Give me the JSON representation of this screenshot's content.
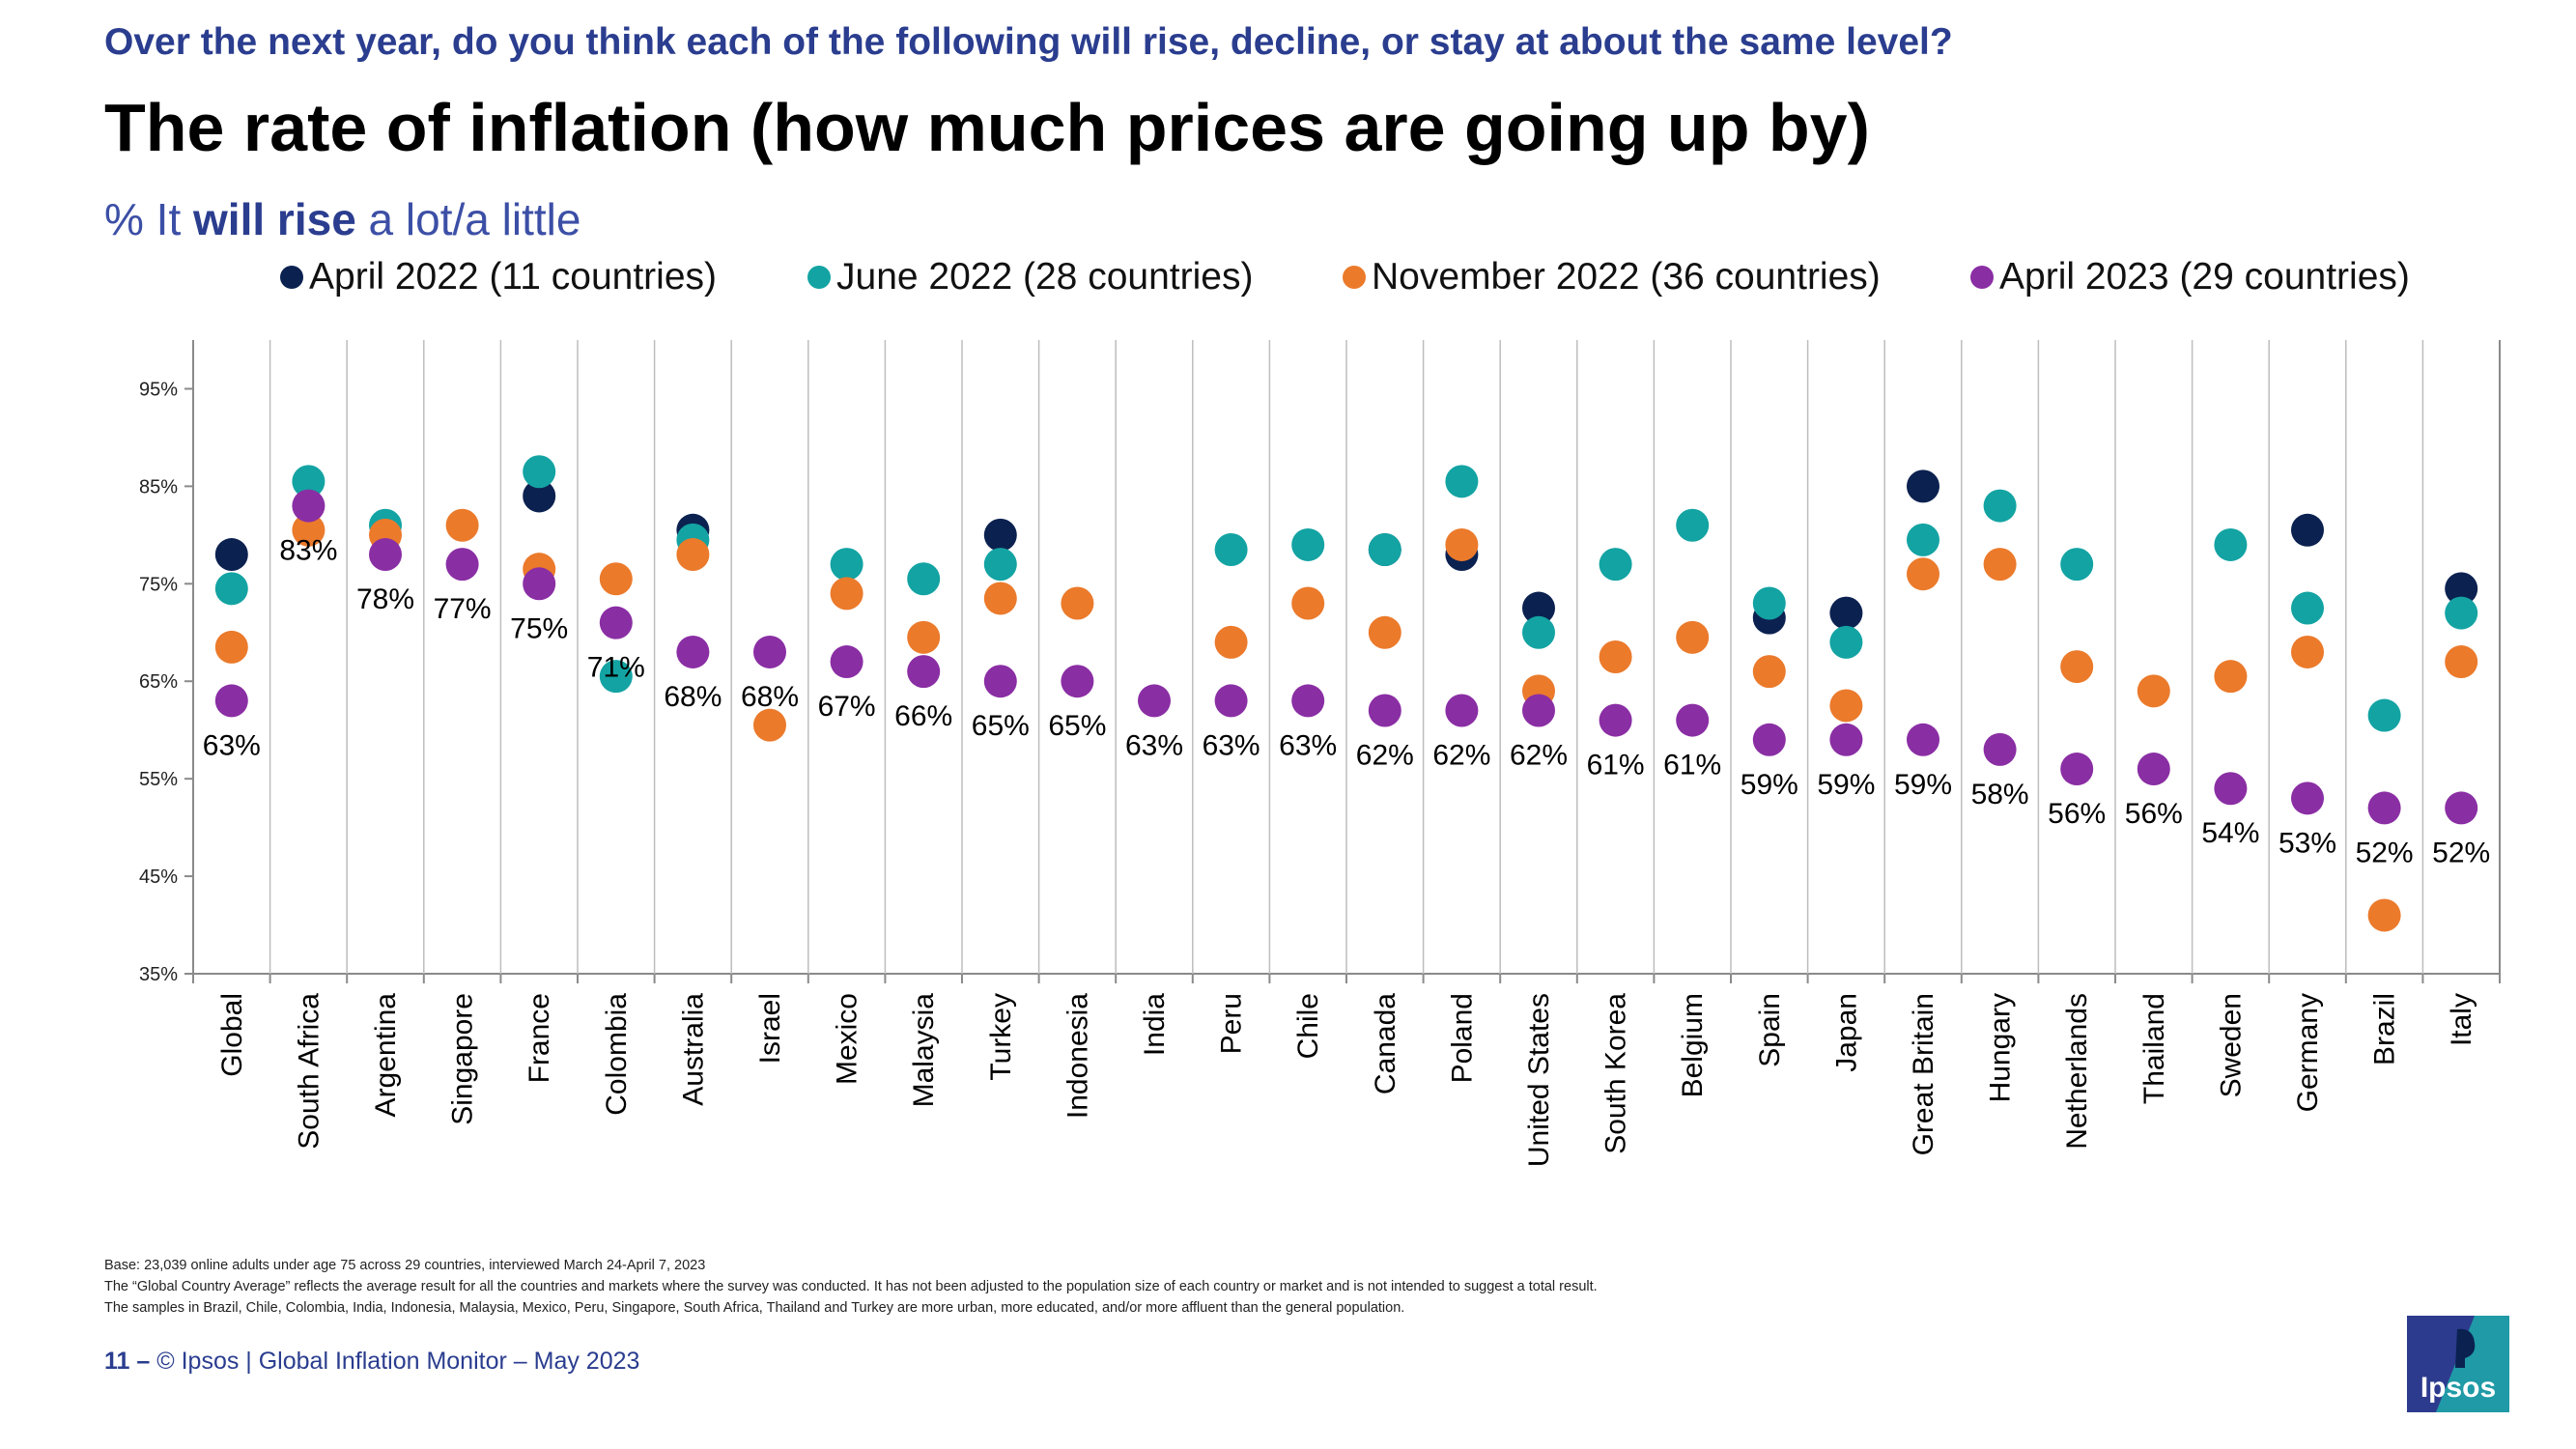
{
  "header": {
    "question": "Over the next year, do you think each of the following will rise, decline, or stay at about the same level?",
    "title": "The rate of inflation (how much prices are going up by)",
    "subtitle_prefix": "% It ",
    "subtitle_bold": "will rise",
    "subtitle_suffix": " a lot/a little"
  },
  "colors": {
    "april2022": "#0b2150",
    "june2022": "#13a3a3",
    "november2022": "#eb7a2b",
    "april2023": "#8a2ea4",
    "question_text": "#2a3d8f"
  },
  "legend": [
    {
      "label": "April 2022 (11 countries)",
      "color": "#0b2150"
    },
    {
      "label": "June 2022 (28 countries)",
      "color": "#13a3a3"
    },
    {
      "label": "November 2022 (36 countries)",
      "color": "#eb7a2b"
    },
    {
      "label": "April 2023 (29 countries)",
      "color": "#8a2ea4"
    }
  ],
  "chart_data": {
    "type": "scatter",
    "title": "The rate of inflation (how much prices are going up by)",
    "ylabel": "% It will rise a lot/a little",
    "ylim": [
      35,
      100
    ],
    "yticks": [
      35,
      45,
      55,
      65,
      75,
      85,
      95
    ],
    "ytick_labels": [
      "35%",
      "45%",
      "55%",
      "65%",
      "75%",
      "85%",
      "95%"
    ],
    "categories": [
      "Global",
      "South Africa",
      "Argentina",
      "Singapore",
      "France",
      "Colombia",
      "Australia",
      "Israel",
      "Mexico",
      "Malaysia",
      "Turkey",
      "Indonesia",
      "India",
      "Peru",
      "Chile",
      "Canada",
      "Poland",
      "United States",
      "South Korea",
      "Belgium",
      "Spain",
      "Japan",
      "Great Britain",
      "Hungary",
      "Netherlands",
      "Thailand",
      "Sweden",
      "Germany",
      "Brazil",
      "Italy"
    ],
    "series": [
      {
        "name": "April 2022 (11 countries)",
        "color": "#0b2150",
        "values": [
          78,
          null,
          null,
          null,
          84,
          null,
          80.5,
          null,
          null,
          null,
          80,
          null,
          null,
          null,
          null,
          78.5,
          78,
          72.5,
          null,
          null,
          71.5,
          72,
          85,
          null,
          null,
          null,
          null,
          80.5,
          null,
          74.5
        ]
      },
      {
        "name": "June 2022 (28 countries)",
        "color": "#13a3a3",
        "values": [
          74.5,
          85.5,
          81,
          null,
          86.5,
          65.5,
          79.5,
          null,
          77,
          75.5,
          77,
          null,
          null,
          78.5,
          79,
          78.5,
          85.5,
          70,
          77,
          81,
          73,
          69,
          79.5,
          83,
          77,
          null,
          79,
          72.5,
          61.5,
          72
        ]
      },
      {
        "name": "November 2022 (36 countries)",
        "color": "#eb7a2b",
        "values": [
          68.5,
          80.5,
          80,
          81,
          76.5,
          75.5,
          78,
          60.5,
          74,
          69.5,
          73.5,
          73,
          null,
          69,
          73,
          70,
          79,
          64,
          67.5,
          69.5,
          66,
          62.5,
          76,
          77,
          66.5,
          64,
          65.5,
          68,
          41,
          67
        ]
      },
      {
        "name": "April 2023 (29 countries)",
        "color": "#8a2ea4",
        "values": [
          63,
          83,
          78,
          77,
          75,
          71,
          68,
          68,
          67,
          66,
          65,
          65,
          63,
          63,
          63,
          62,
          62,
          62,
          61,
          61,
          59,
          59,
          59,
          58,
          56,
          56,
          54,
          53,
          52,
          52
        ],
        "labels": [
          "63%",
          "83%",
          "78%",
          "77%",
          "75%",
          "71%",
          "68%",
          "68%",
          "67%",
          "66%",
          "65%",
          "65%",
          "63%",
          "63%",
          "63%",
          "62%",
          "62%",
          "62%",
          "61%",
          "61%",
          "59%",
          "59%",
          "59%",
          "58%",
          "56%",
          "56%",
          "54%",
          "53%",
          "52%",
          "52%"
        ]
      }
    ]
  },
  "footnotes": [
    "Base: 23,039 online adults under age 75 across 29 countries, interviewed March 24-April 7, 2023",
    "The “Global Country Average” reflects the average result for all the countries and markets where the survey was conducted. It has not been adjusted to the population size of each country or market and is not intended to suggest a total result.",
    "The samples in Brazil, Chile, Colombia, India, Indonesia, Malaysia, Mexico, Peru, Singapore, South Africa, Thailand and Turkey are more urban, more educated, and/or more affluent than the general population."
  ],
  "footer": {
    "page_number": "11 –",
    "text": "© Ipsos | Global Inflation Monitor – May 2023"
  },
  "logo": {
    "text": "Ipsos"
  }
}
